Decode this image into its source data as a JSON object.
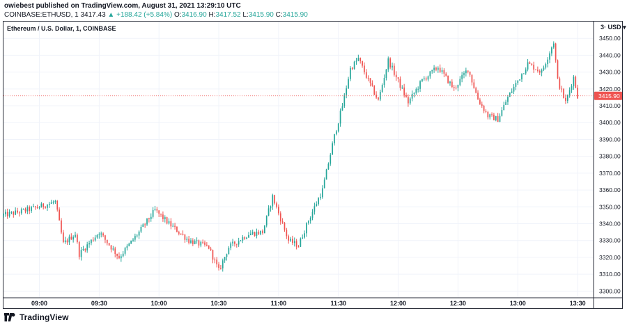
{
  "header": {
    "published": "owiebest published on TradingView.com, August 31, 2021 13:29:10 UTC",
    "symbol": "COINBASE:ETHUSD, 1",
    "last": "3417.43",
    "change": "▲ +188.42 (+5.84%)",
    "o_label": "O:",
    "o_value": "3416.90",
    "h_label": "H:",
    "h_value": "3417.52",
    "l_label": "L:",
    "l_value": "3415.90",
    "c_label": "C:",
    "c_value": "3415.90"
  },
  "legend": "Ethereum / U.S. Dollar, 1, COINBASE",
  "currency_label": "3· USD ▾",
  "footer": {
    "brand": "TradingView"
  },
  "colors": {
    "up": "#26a69a",
    "down": "#ef5350",
    "price_line": "#ef5350"
  },
  "chart_data": {
    "type": "candlestick",
    "title": "Ethereum / U.S. Dollar, 1, COINBASE",
    "x_ticks": [
      "09:00",
      "09:30",
      "10:00",
      "10:30",
      "11:00",
      "11:30",
      "12:00",
      "12:30",
      "13:00",
      "13:30"
    ],
    "y_ticks": [
      3300,
      3310,
      3320,
      3330,
      3340,
      3350,
      3360,
      3370,
      3380,
      3390,
      3400,
      3410,
      3420,
      3430,
      3440,
      3450
    ],
    "ylim": [
      3296,
      3460
    ],
    "last_price": 3415.9,
    "last_price_label": "3415.90",
    "y_axis_position": "right",
    "grid": true,
    "x_range": [
      "08:42",
      "13:38"
    ],
    "series_approx_close": [
      {
        "t": "08:42",
        "c": 3345
      },
      {
        "t": "08:50",
        "c": 3347
      },
      {
        "t": "09:00",
        "c": 3350
      },
      {
        "t": "09:08",
        "c": 3353
      },
      {
        "t": "09:12",
        "c": 3328
      },
      {
        "t": "09:18",
        "c": 3334
      },
      {
        "t": "09:20",
        "c": 3322
      },
      {
        "t": "09:30",
        "c": 3335
      },
      {
        "t": "09:40",
        "c": 3320
      },
      {
        "t": "09:50",
        "c": 3335
      },
      {
        "t": "09:58",
        "c": 3348
      },
      {
        "t": "10:05",
        "c": 3340
      },
      {
        "t": "10:15",
        "c": 3330
      },
      {
        "t": "10:25",
        "c": 3326
      },
      {
        "t": "10:30",
        "c": 3312
      },
      {
        "t": "10:35",
        "c": 3326
      },
      {
        "t": "10:45",
        "c": 3334
      },
      {
        "t": "10:52",
        "c": 3335
      },
      {
        "t": "10:57",
        "c": 3356
      },
      {
        "t": "11:05",
        "c": 3330
      },
      {
        "t": "11:10",
        "c": 3327
      },
      {
        "t": "11:15",
        "c": 3342
      },
      {
        "t": "11:22",
        "c": 3360
      },
      {
        "t": "11:28",
        "c": 3392
      },
      {
        "t": "11:32",
        "c": 3410
      },
      {
        "t": "11:36",
        "c": 3432
      },
      {
        "t": "11:40",
        "c": 3438
      },
      {
        "t": "11:45",
        "c": 3425
      },
      {
        "t": "11:50",
        "c": 3413
      },
      {
        "t": "11:55",
        "c": 3437
      },
      {
        "t": "12:05",
        "c": 3412
      },
      {
        "t": "12:12",
        "c": 3425
      },
      {
        "t": "12:20",
        "c": 3433
      },
      {
        "t": "12:28",
        "c": 3420
      },
      {
        "t": "12:35",
        "c": 3432
      },
      {
        "t": "12:40",
        "c": 3414
      },
      {
        "t": "12:45",
        "c": 3404
      },
      {
        "t": "12:50",
        "c": 3402
      },
      {
        "t": "12:55",
        "c": 3415
      },
      {
        "t": "13:05",
        "c": 3435
      },
      {
        "t": "13:12",
        "c": 3430
      },
      {
        "t": "13:18",
        "c": 3448
      },
      {
        "t": "13:20",
        "c": 3425
      },
      {
        "t": "13:24",
        "c": 3412
      },
      {
        "t": "13:28",
        "c": 3427
      },
      {
        "t": "13:30",
        "c": 3416
      }
    ]
  }
}
